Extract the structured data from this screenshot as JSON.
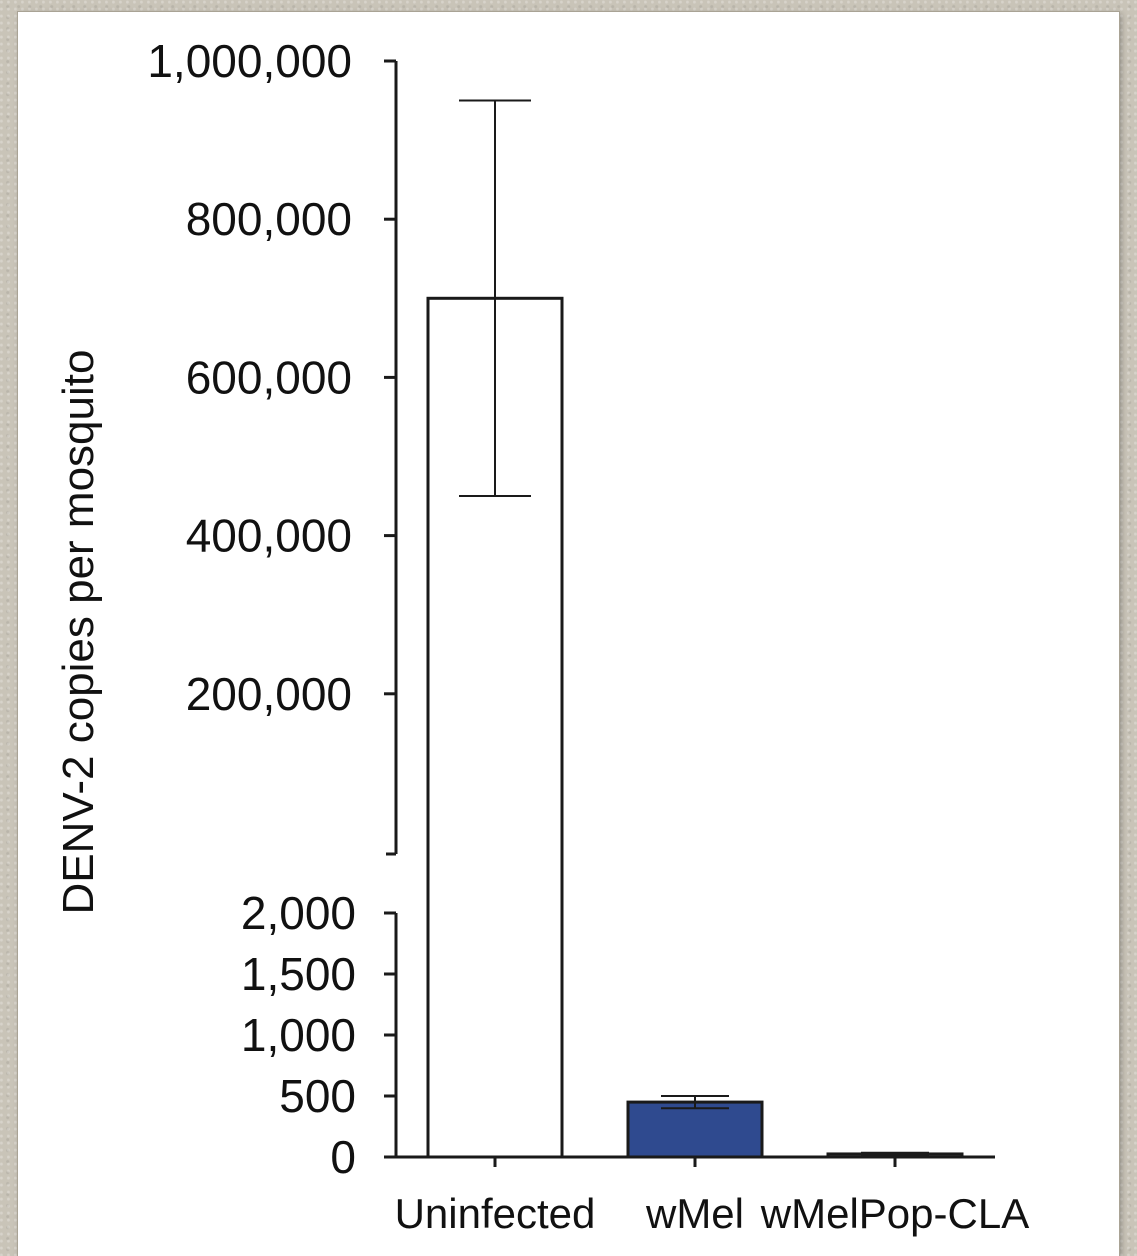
{
  "chart_data": {
    "type": "bar",
    "ylabel": "DENV-2 copies per mosquito",
    "xlabel": "",
    "categories": [
      "Uninfected",
      "wMel",
      "wMelPop-CLA"
    ],
    "values": [
      700000,
      450,
      25
    ],
    "error_bars": [
      {
        "low": 450000,
        "high": 950000
      },
      {
        "low": 400,
        "high": 500
      },
      {
        "low": 15,
        "high": 35
      }
    ],
    "bar_colors": [
      "#ffffff",
      "#2f4a8f",
      "#ffffff"
    ],
    "y_axis_broken": true,
    "y_upper_segment": {
      "range": [
        0,
        1000000
      ],
      "ticks": [
        200000,
        400000,
        600000,
        800000,
        1000000
      ],
      "tick_labels": [
        "200,000",
        "400,000",
        "600,000",
        "800,000",
        "1,000,000"
      ]
    },
    "y_lower_segment": {
      "range": [
        0,
        2000
      ],
      "ticks": [
        0,
        500,
        1000,
        1500,
        2000
      ],
      "tick_labels": [
        "0",
        "500",
        "1,000",
        "1,500",
        "2,000"
      ]
    },
    "grid": false,
    "legend": "none"
  }
}
